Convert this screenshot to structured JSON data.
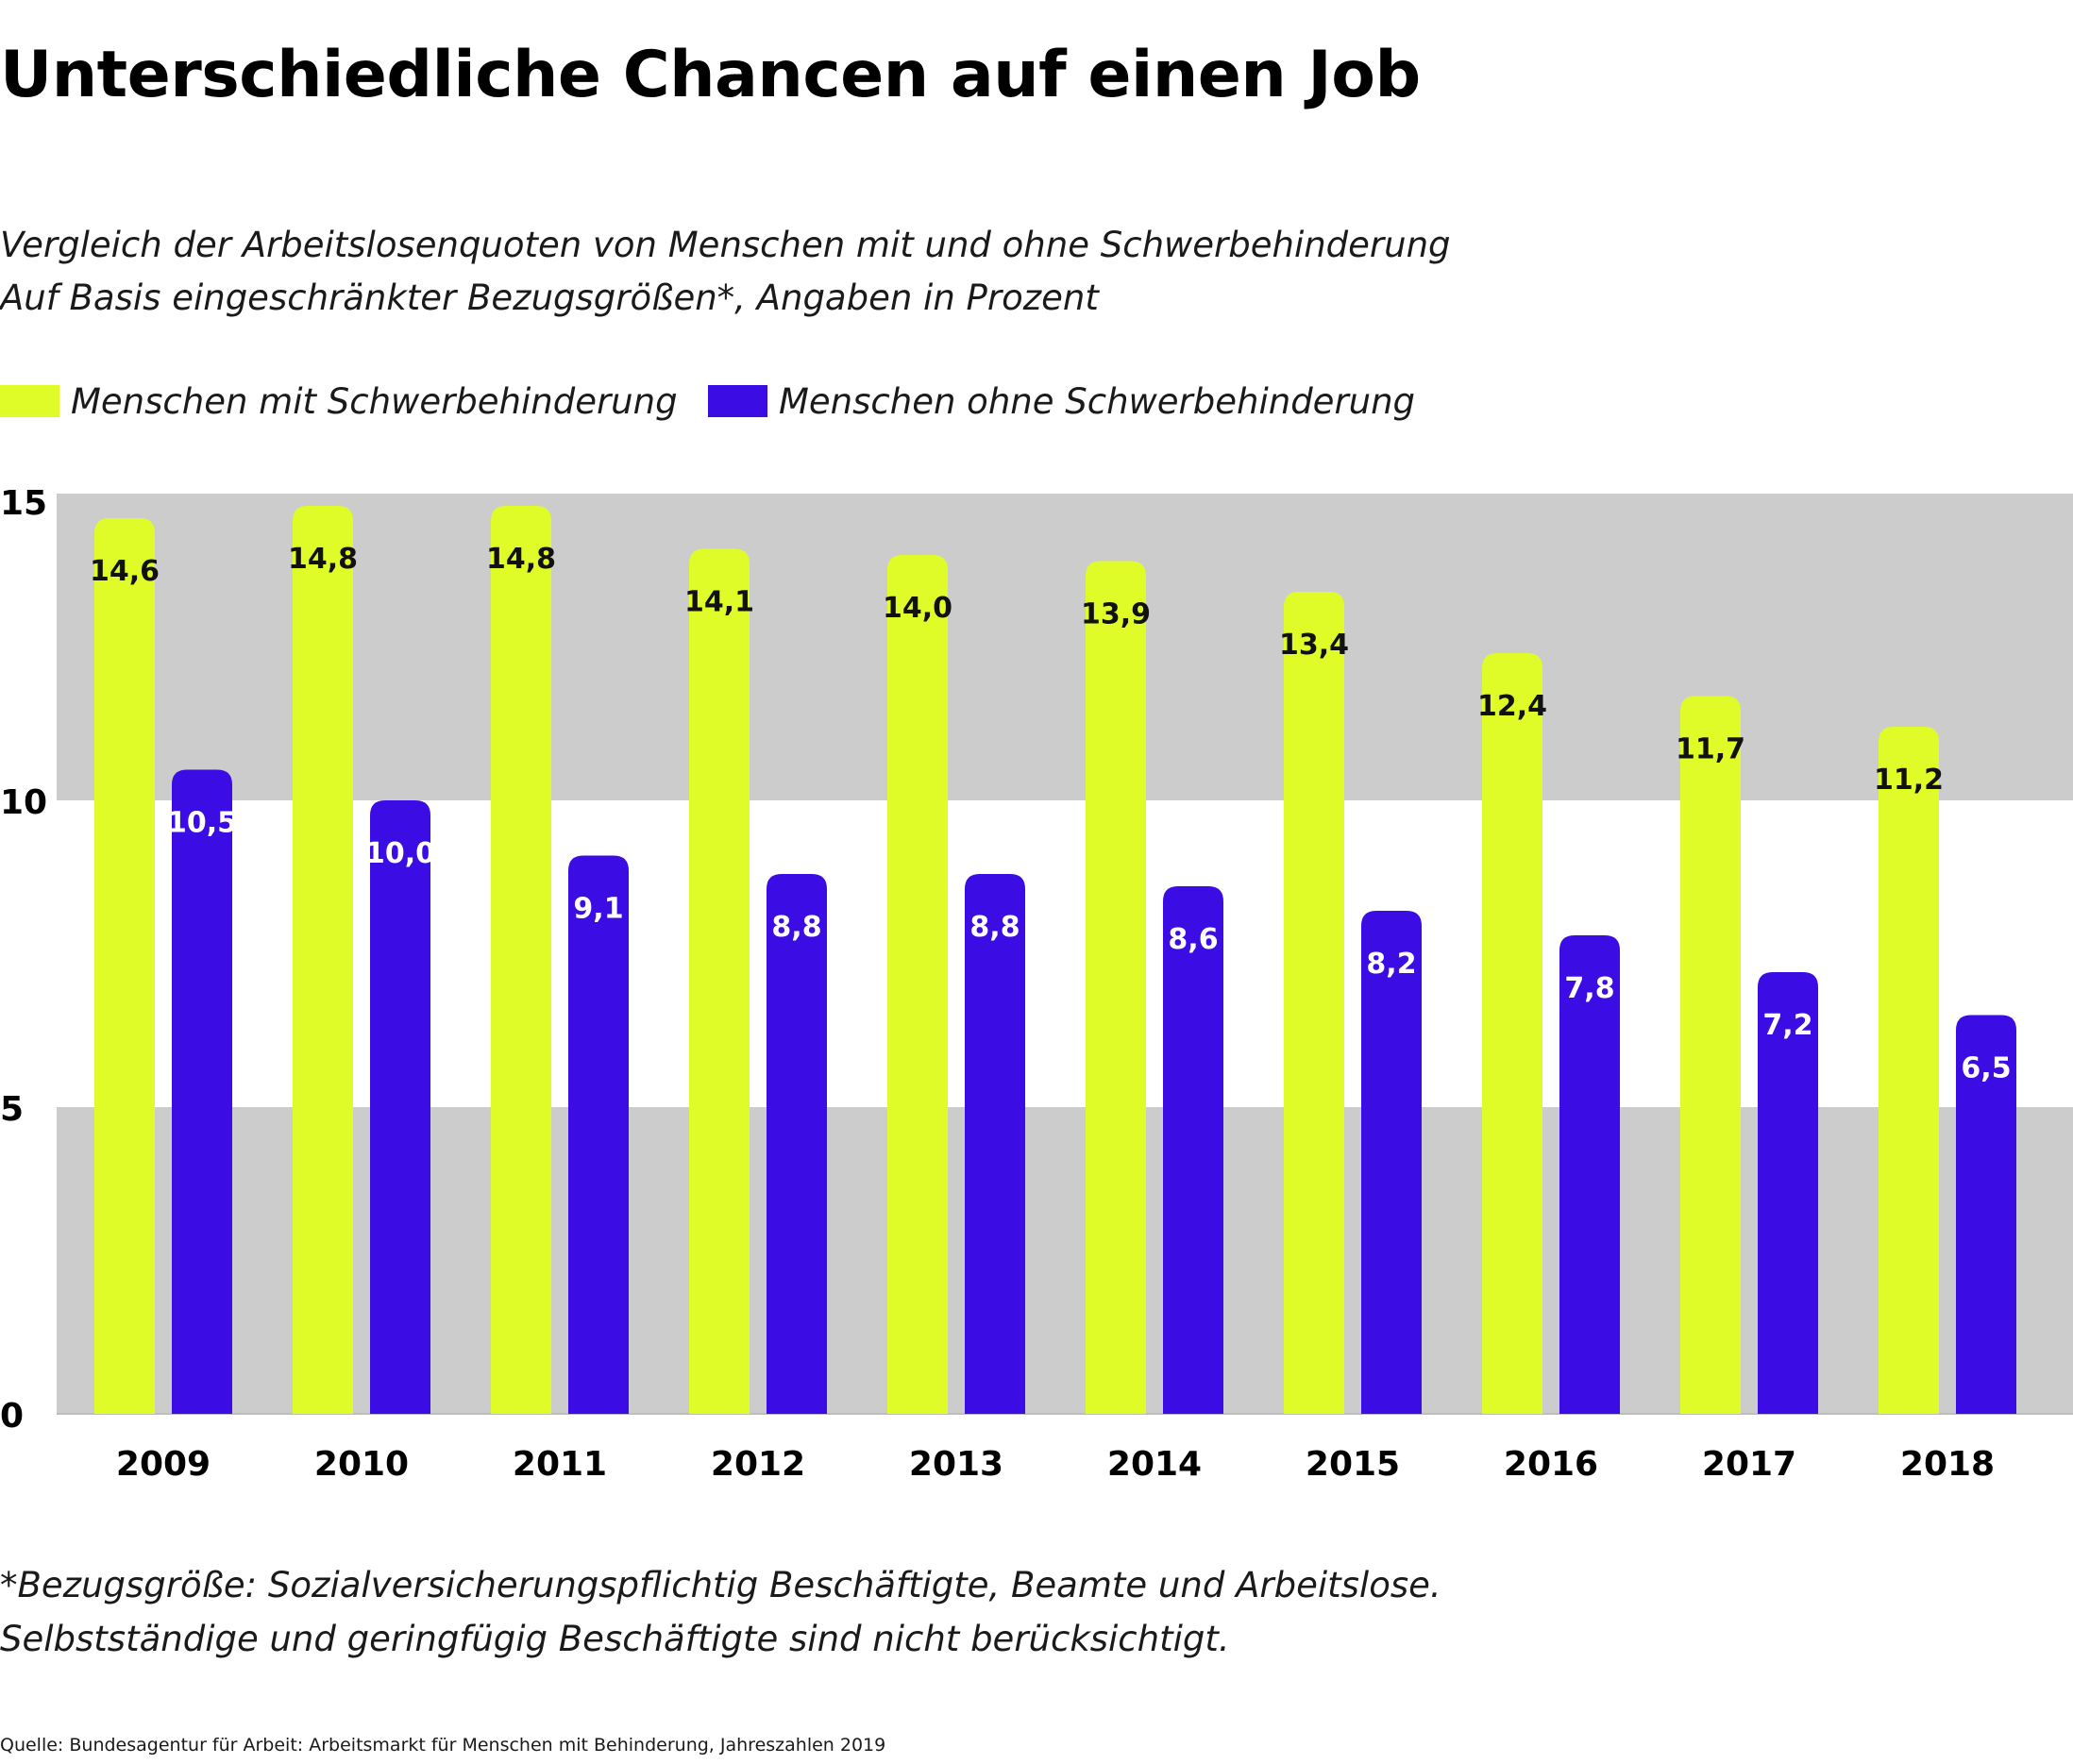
{
  "page": {
    "title": "Unterschiedliche Chancen auf einen Job",
    "subtitle_line1": "Vergleich der Arbeitslosenquoten von Menschen mit und ohne Schwerbehinderung",
    "subtitle_line2": "Auf Basis eingeschränkter Bezugsgrößen*, Angaben in Prozent",
    "footnote_line1": "*Bezugsgröße: Sozialversicherungspflichtig Beschäftigte, Beamte und Arbeitslose.",
    "footnote_line2": "Selbstständige und geringfügig Beschäftigte sind nicht berücksichtigt.",
    "source": "Quelle: Bundesagentur für Arbeit: Arbeitsmarkt für Menschen mit Behinderung, Jahreszahlen 2019"
  },
  "colors": {
    "series1": "#dffc28",
    "series2": "#3c0ce4",
    "band_gray": "#cccccc",
    "label_dark": "#111111",
    "label_light": "#ffffff"
  },
  "chart_data": {
    "type": "bar",
    "title": "Unterschiedliche Chancen auf einen Job",
    "xlabel": "",
    "ylabel": "",
    "ylim": [
      0,
      15
    ],
    "yticks": [
      0,
      5,
      10,
      15
    ],
    "ytick_labels": [
      "0",
      "5",
      "10",
      "15"
    ],
    "categories": [
      "2009",
      "2010",
      "2011",
      "2012",
      "2013",
      "2014",
      "2015",
      "2016",
      "2017",
      "2018"
    ],
    "series": [
      {
        "name": "Menschen mit Schwerbehinderung",
        "values": [
          14.6,
          14.8,
          14.8,
          14.1,
          14.0,
          13.9,
          13.4,
          12.4,
          11.7,
          11.2
        ],
        "labels": [
          "14,6",
          "14,8",
          "14,8",
          "14,1",
          "14,0",
          "13,9",
          "13,4",
          "12,4",
          "11,7",
          "11,2"
        ]
      },
      {
        "name": "Menschen ohne Schwerbehinderung",
        "values": [
          10.5,
          10.0,
          9.1,
          8.8,
          8.8,
          8.6,
          8.2,
          7.8,
          7.2,
          6.5
        ],
        "labels": [
          "10,5",
          "10,0",
          "9,1",
          "8,8",
          "8,8",
          "8,6",
          "8,2",
          "7,8",
          "7,2",
          "6,5"
        ]
      }
    ],
    "legend": "top-left",
    "grid": false,
    "background_bands": "alternating gray/white per 5 units"
  }
}
